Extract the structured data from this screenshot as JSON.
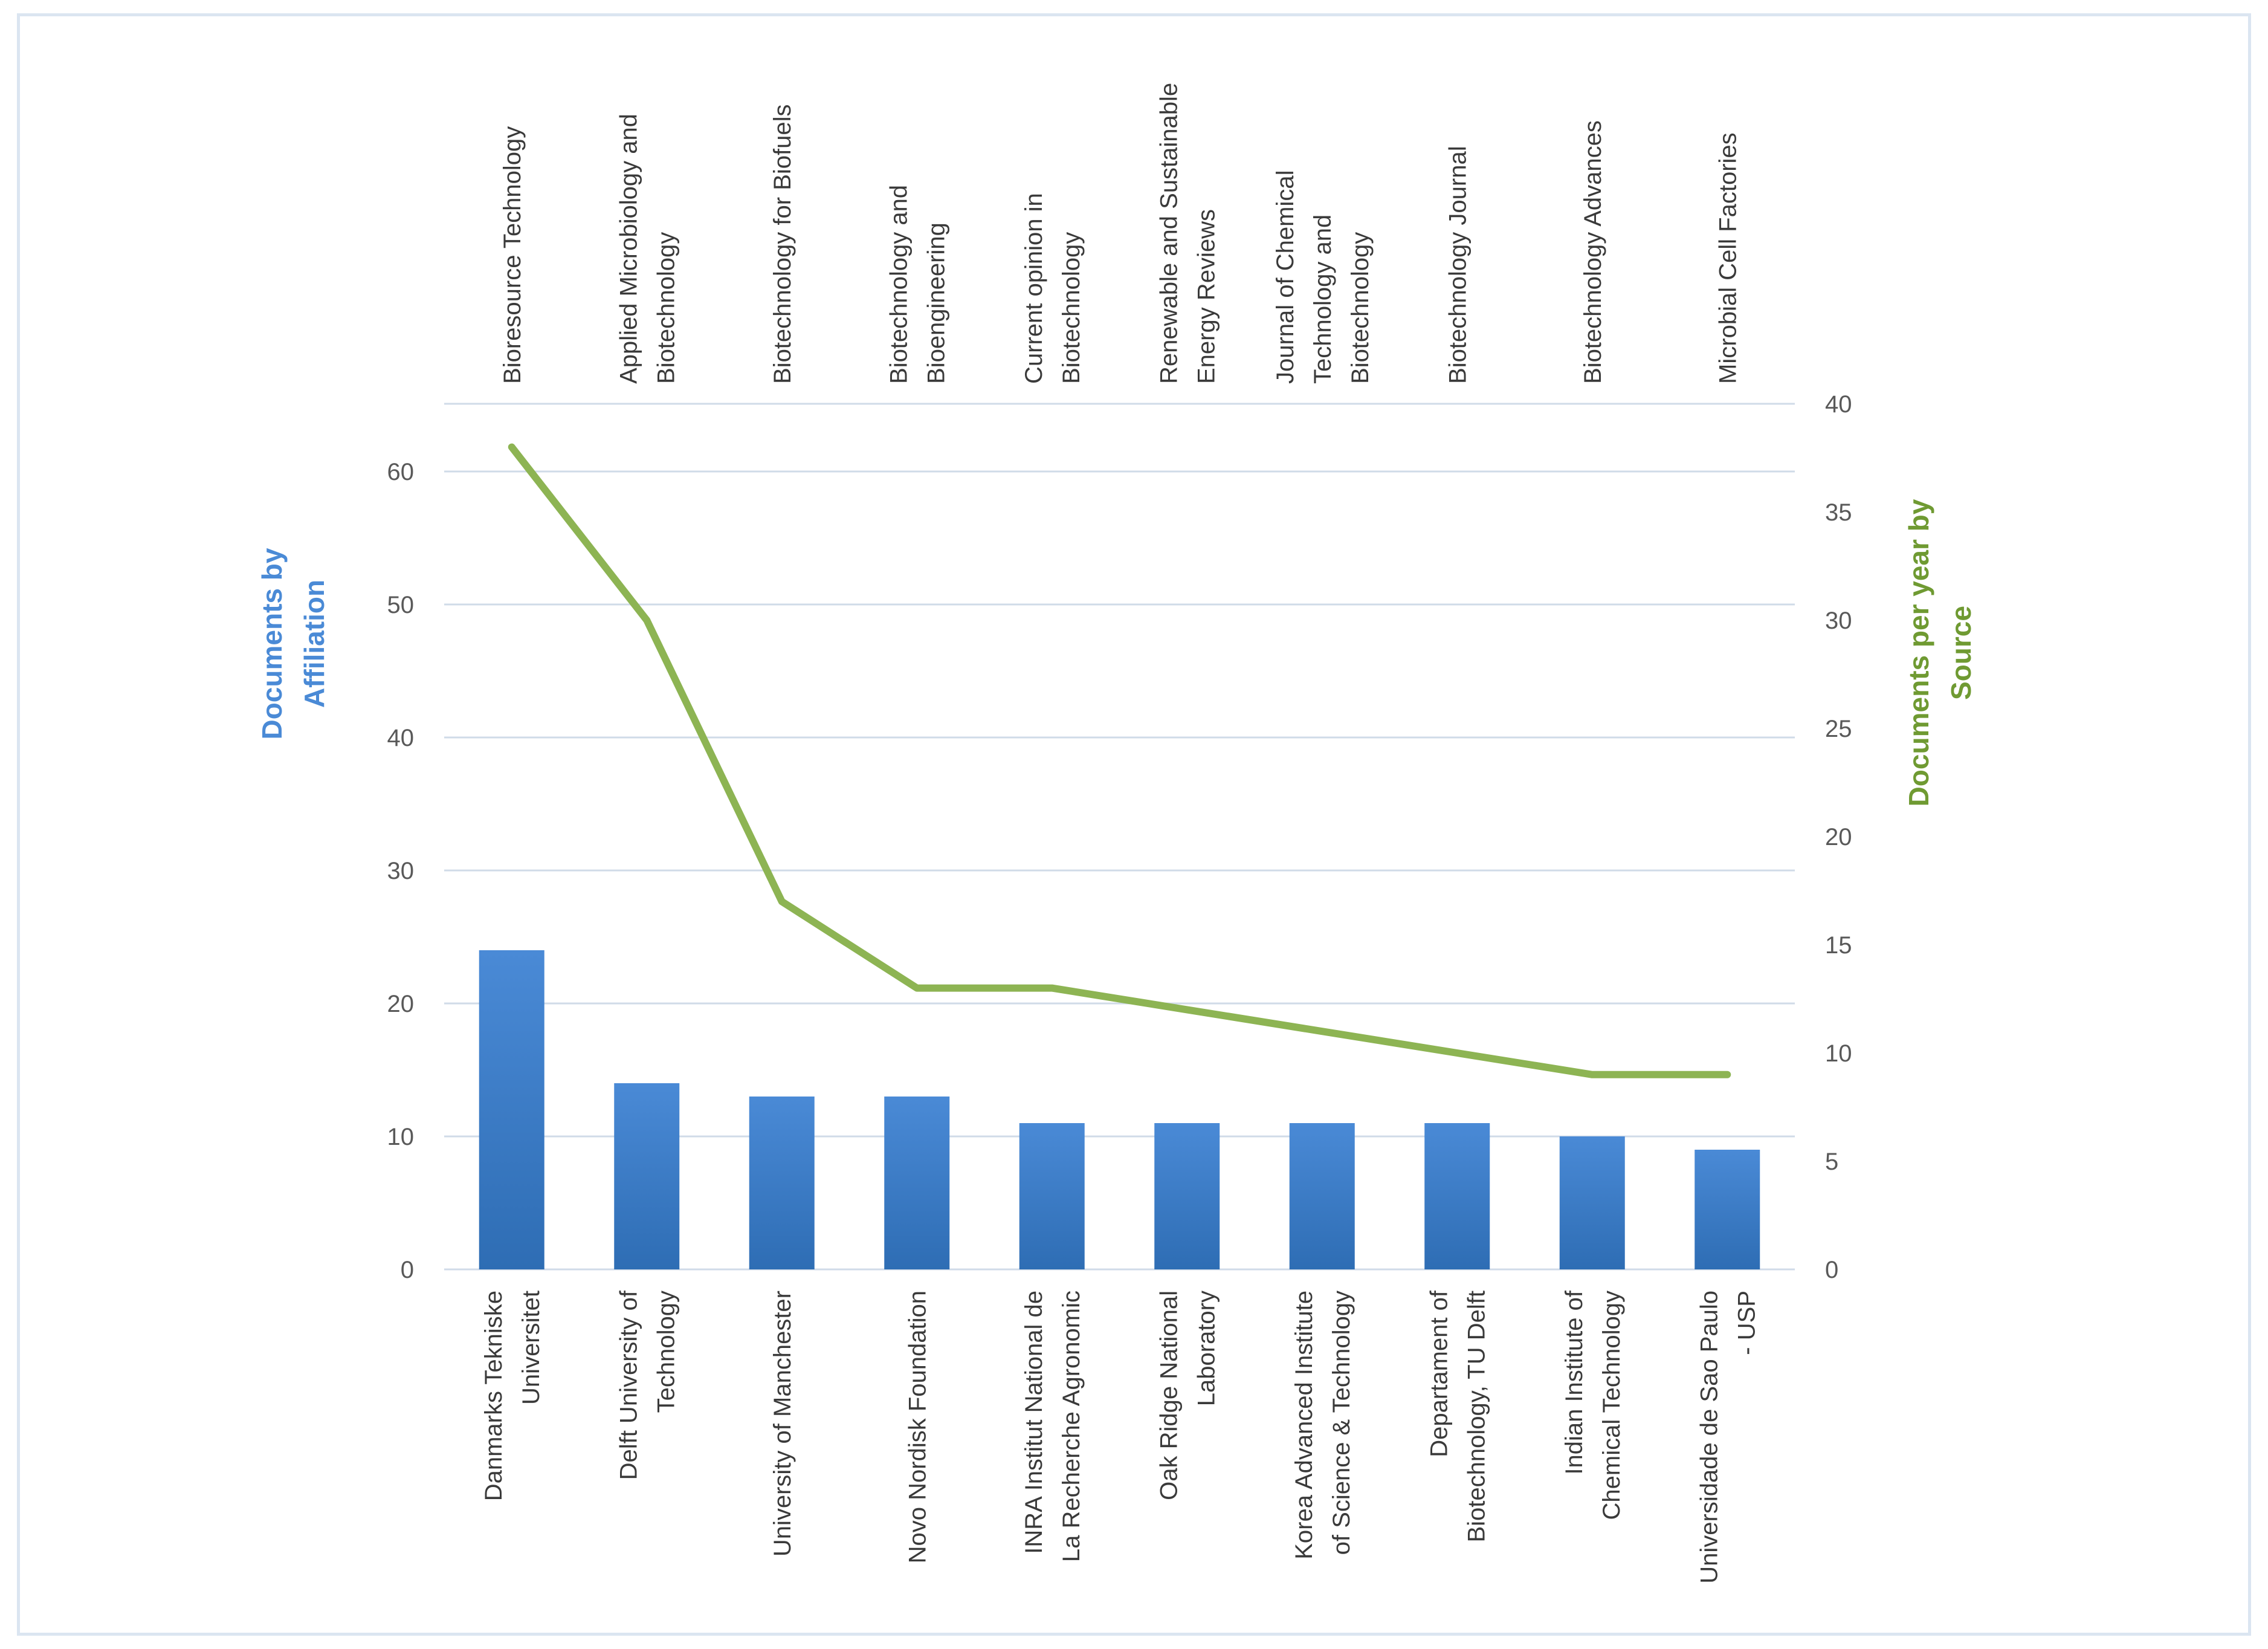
{
  "chart_data": {
    "type": "bar+line",
    "title": "",
    "colors": {
      "bars": "#2e6db4",
      "bars_light": "#4a8ad6",
      "line": "#8db453",
      "grid": "#d0dbe8",
      "left_title": "#4a8ad6",
      "right_title": "#6f9a32"
    },
    "left_axis": {
      "title_lines": [
        "Documents by",
        "Affiliation"
      ],
      "range": [
        0,
        65
      ],
      "ticks": [
        "0",
        "10",
        "20",
        "30",
        "40",
        "50",
        "60"
      ],
      "tick_values": [
        0,
        10,
        20,
        30,
        40,
        50,
        60
      ]
    },
    "right_axis": {
      "title_lines": [
        "Documents per year  by",
        "Source"
      ],
      "range": [
        0,
        40
      ],
      "ticks": [
        "0",
        "5",
        "10",
        "15",
        "20",
        "25",
        "30",
        "35",
        "40"
      ],
      "tick_values": [
        0,
        5,
        10,
        15,
        20,
        25,
        30,
        35,
        40
      ]
    },
    "bar_series": {
      "name": "Documents by Affiliation",
      "categories": [
        [
          "Danmarks Tekniske",
          "Universitet"
        ],
        [
          "Delft University of",
          "Technology"
        ],
        [
          "University of Manchester"
        ],
        [
          "Novo Nordisk Foundation"
        ],
        [
          "INRA Institut National de",
          "La Recherche Agronomic"
        ],
        [
          "Oak Ridge National",
          "Laboratory"
        ],
        [
          "Korea Advanced Institute",
          "of Science & Technology"
        ],
        [
          "Departament of",
          "Biotechnology, TU Delft"
        ],
        [
          "Indian Institute of",
          "Chemical Technology"
        ],
        [
          "Universidade de Sao Paulo",
          "- USP"
        ]
      ],
      "values": [
        24,
        14,
        13,
        13,
        11,
        11,
        11,
        11,
        10,
        9
      ]
    },
    "line_series": {
      "name": "Documents per year by Source",
      "categories": [
        [
          "Bioresource Technology"
        ],
        [
          "Applied Microbiology and",
          "Biotechnology"
        ],
        [
          "Biotechnology for Biofuels"
        ],
        [
          "Biotechnology and",
          "Bioengineering"
        ],
        [
          "Current opinion in",
          "Biotechnology"
        ],
        [
          "Renewable and Sustainable",
          "Energy Reviews"
        ],
        [
          "Journal of Chemical",
          "Technology and",
          "Biotechnology"
        ],
        [
          "Biotechnology Journal"
        ],
        [
          "Biotechnology Advances"
        ],
        [
          "Microbial Cell Factories"
        ]
      ],
      "values": [
        38,
        30,
        17,
        13,
        13,
        12,
        11,
        10,
        9,
        9
      ]
    }
  }
}
